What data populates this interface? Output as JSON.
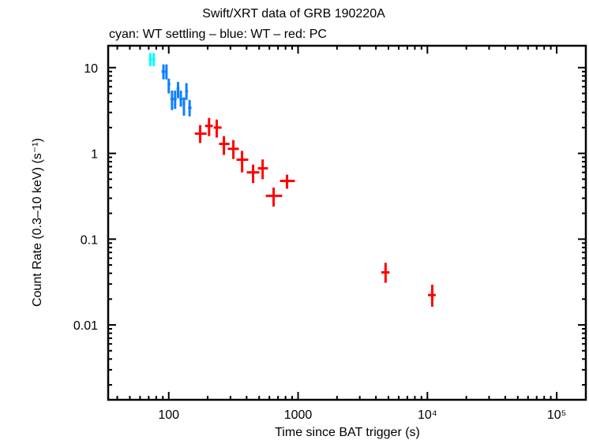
{
  "chart_data": {
    "type": "scatter",
    "title": "Swift/XRT data of GRB 190220A",
    "subtitle": "cyan: WT settling – blue: WT – red: PC",
    "xlabel": "Time since BAT trigger (s)",
    "ylabel": "Count Rate (0.3–10 keV) (s⁻¹)",
    "xscale": "log",
    "yscale": "log",
    "xlim": [
      34,
      168000
    ],
    "ylim": [
      0.00134,
      18
    ],
    "grid": false,
    "legend": "none (colors described in subtitle)",
    "x_ticks": [
      {
        "value": 100,
        "label": "100"
      },
      {
        "value": 1000,
        "label": "1000"
      },
      {
        "value": 10000,
        "label": "10⁴"
      },
      {
        "value": 100000,
        "label": "10⁵"
      }
    ],
    "y_ticks": [
      {
        "value": 10,
        "label": "10"
      },
      {
        "value": 1,
        "label": "1"
      },
      {
        "value": 0.1,
        "label": "0.1"
      },
      {
        "value": 0.01,
        "label": "0.01"
      }
    ],
    "series": [
      {
        "name": "WT settling",
        "color": "#00ffff",
        "points": [
          {
            "t": 72,
            "t_lo": 70,
            "t_hi": 74,
            "rate": 12.4,
            "rate_lo": 10.4,
            "rate_hi": 14.8
          },
          {
            "t": 76.5,
            "t_lo": 74.5,
            "t_hi": 78.5,
            "rate": 12.4,
            "rate_lo": 10.4,
            "rate_hi": 14.8
          }
        ]
      },
      {
        "name": "WT",
        "color": "#0f7fff",
        "points": [
          {
            "t": 91,
            "t_lo": 88,
            "t_hi": 94,
            "rate": 9.0,
            "rate_lo": 7.3,
            "rate_hi": 10.9
          },
          {
            "t": 96,
            "t_lo": 94,
            "t_hi": 98,
            "rate": 9.0,
            "rate_lo": 7.3,
            "rate_hi": 10.9
          },
          {
            "t": 100,
            "t_lo": 98,
            "t_hi": 103,
            "rate": 6.4,
            "rate_lo": 5.0,
            "rate_hi": 7.45
          },
          {
            "t": 106,
            "t_lo": 103,
            "t_hi": 109,
            "rate": 4.3,
            "rate_lo": 3.2,
            "rate_hi": 5.4
          },
          {
            "t": 112,
            "t_lo": 109,
            "t_hi": 115,
            "rate": 4.3,
            "rate_lo": 3.3,
            "rate_hi": 5.4
          },
          {
            "t": 118,
            "t_lo": 115,
            "t_hi": 121,
            "rate": 5.65,
            "rate_lo": 4.4,
            "rate_hi": 6.8
          },
          {
            "t": 124,
            "t_lo": 121,
            "t_hi": 128,
            "rate": 4.3,
            "rate_lo": 3.5,
            "rate_hi": 5.4
          },
          {
            "t": 131,
            "t_lo": 128,
            "t_hi": 134,
            "rate": 3.8,
            "rate_lo": 2.75,
            "rate_hi": 4.5
          },
          {
            "t": 137,
            "t_lo": 134,
            "t_hi": 141,
            "rate": 5.3,
            "rate_lo": 4.2,
            "rate_hi": 6.6
          },
          {
            "t": 145,
            "t_lo": 141,
            "t_hi": 150,
            "rate": 3.4,
            "rate_lo": 2.7,
            "rate_hi": 4.2
          }
        ]
      },
      {
        "name": "PC",
        "color": "#ff0000",
        "points": [
          {
            "t": 175,
            "t_lo": 159,
            "t_hi": 196,
            "rate": 1.7,
            "rate_lo": 1.32,
            "rate_hi": 2.14
          },
          {
            "t": 205,
            "t_lo": 191,
            "t_hi": 219,
            "rate": 2.09,
            "rate_lo": 1.59,
            "rate_hi": 2.59
          },
          {
            "t": 235,
            "t_lo": 223,
            "t_hi": 256,
            "rate": 2.0,
            "rate_lo": 1.53,
            "rate_hi": 2.48
          },
          {
            "t": 267,
            "t_lo": 245,
            "t_hi": 295,
            "rate": 1.29,
            "rate_lo": 0.96,
            "rate_hi": 1.59
          },
          {
            "t": 316,
            "t_lo": 286,
            "t_hi": 348,
            "rate": 1.13,
            "rate_lo": 0.86,
            "rate_hi": 1.43
          },
          {
            "t": 369,
            "t_lo": 334,
            "t_hi": 412,
            "rate": 0.845,
            "rate_lo": 0.6,
            "rate_hi": 1.07
          },
          {
            "t": 449,
            "t_lo": 401,
            "t_hi": 502,
            "rate": 0.6,
            "rate_lo": 0.45,
            "rate_hi": 0.74
          },
          {
            "t": 532,
            "t_lo": 489,
            "t_hi": 585,
            "rate": 0.67,
            "rate_lo": 0.5,
            "rate_hi": 0.85
          },
          {
            "t": 647,
            "t_lo": 563,
            "t_hi": 753,
            "rate": 0.32,
            "rate_lo": 0.24,
            "rate_hi": 0.4
          },
          {
            "t": 822,
            "t_lo": 724,
            "t_hi": 945,
            "rate": 0.477,
            "rate_lo": 0.387,
            "rate_hi": 0.565
          },
          {
            "t": 4750,
            "t_lo": 4400,
            "t_hi": 5100,
            "rate": 0.041,
            "rate_lo": 0.031,
            "rate_hi": 0.053
          },
          {
            "t": 10900,
            "t_lo": 10100,
            "t_hi": 11600,
            "rate": 0.0223,
            "rate_lo": 0.0163,
            "rate_hi": 0.0294
          }
        ]
      }
    ]
  }
}
